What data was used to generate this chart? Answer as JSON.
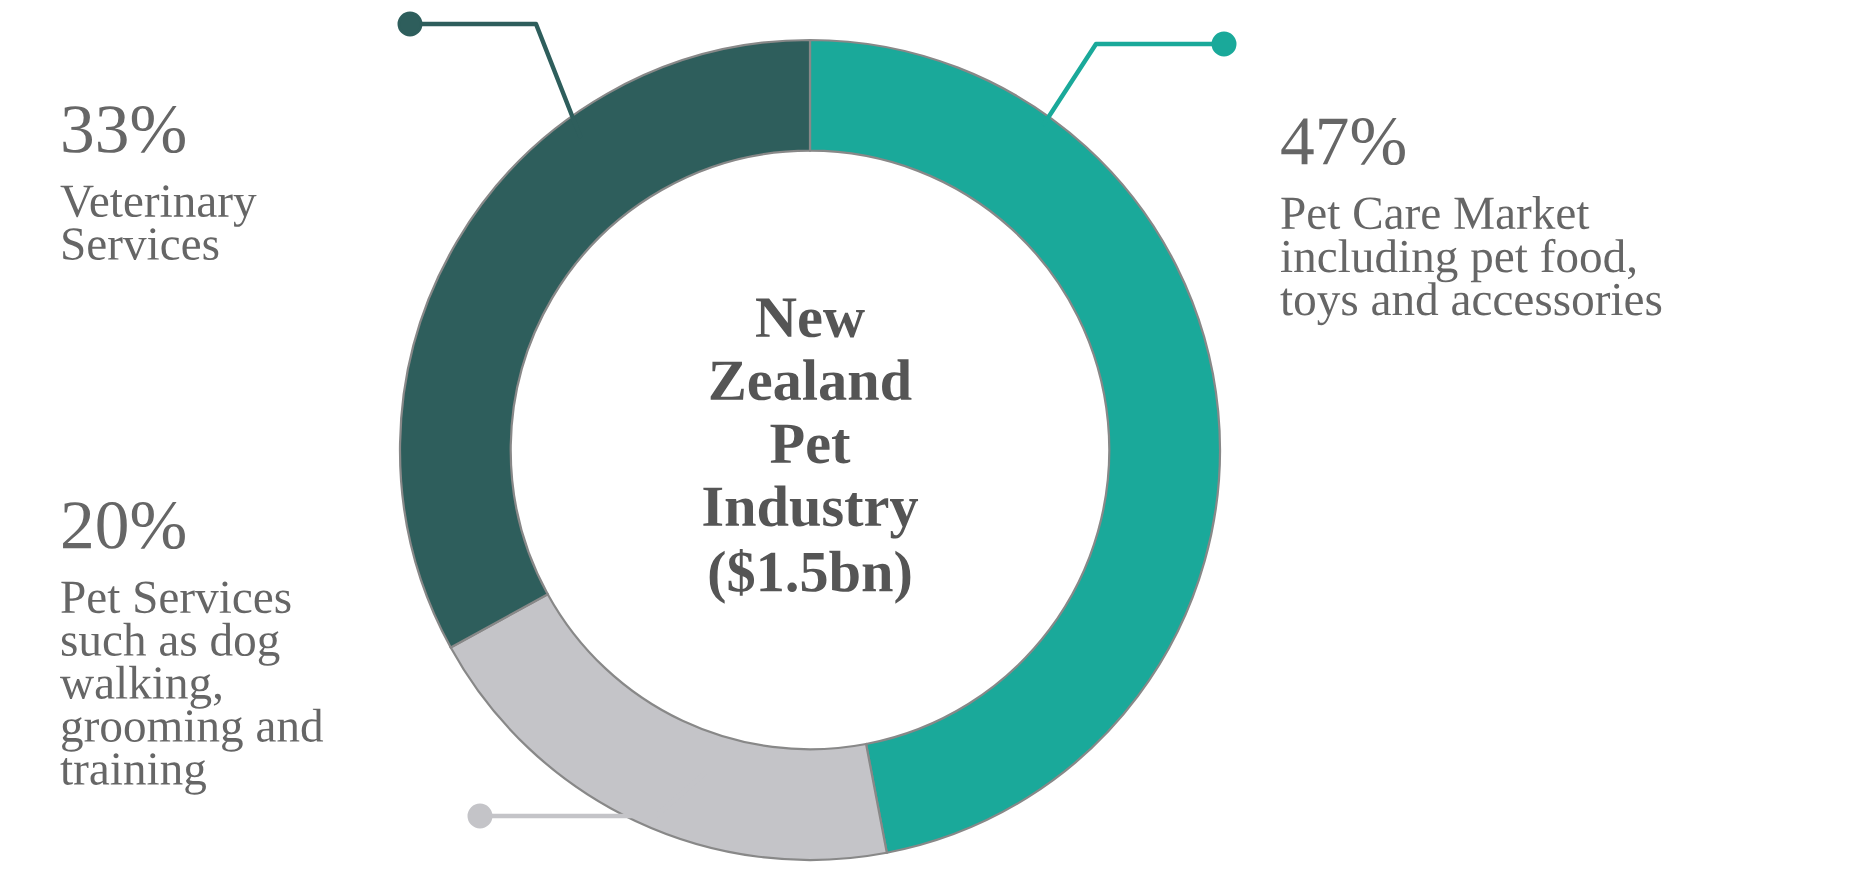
{
  "chart_data": {
    "type": "donut",
    "title": "New\nZealand\nPet\nIndustry\n($1.5bn)",
    "categories": [
      "Pet Care Market\nincluding pet food,\ntoys and accessories",
      "Pet Services\nsuch as dog\nwalking,\ngrooming and\ntraining",
      "Veterinary\nServices"
    ],
    "values": [
      47,
      20,
      33
    ],
    "value_labels": [
      "47%",
      "20%",
      "33%"
    ],
    "colors": [
      "#1aa99a",
      "#c4c4c8",
      "#2e5e5c"
    ],
    "legend": false
  }
}
